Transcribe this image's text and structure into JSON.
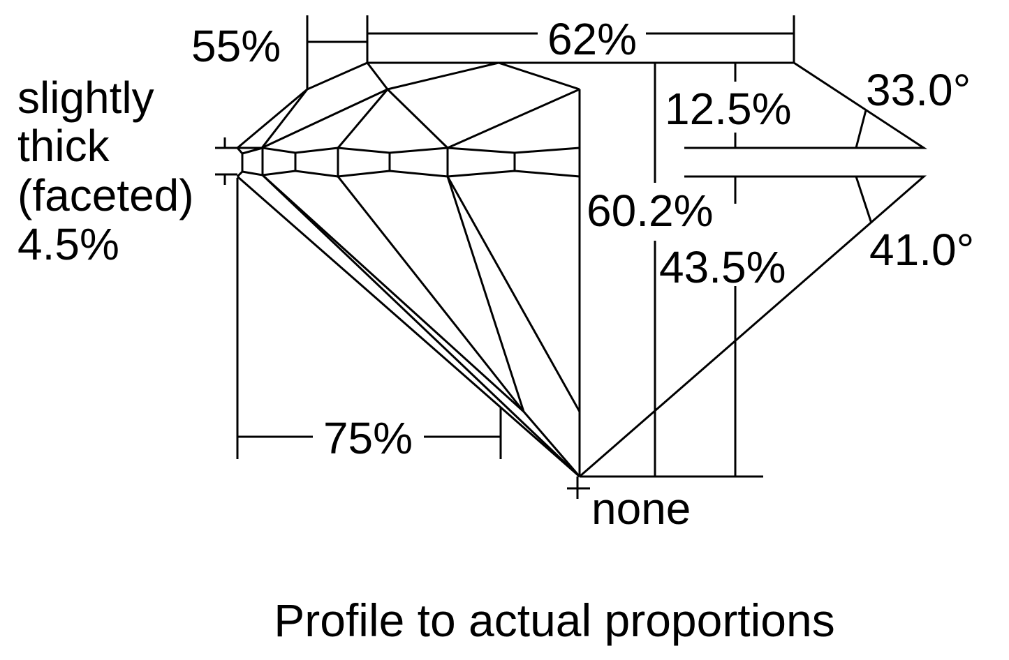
{
  "labels": {
    "crown_height_width": "55%",
    "table": "62%",
    "girdle_line1": "slightly",
    "girdle_line2": "thick",
    "girdle_line3": "(faceted)",
    "girdle_thickness": "4.5%",
    "crown_height": "12.5%",
    "crown_angle": "33.0°",
    "total_depth": "60.2%",
    "pavilion_depth": "43.5%",
    "pavilion_angle": "41.0°",
    "culet": "none",
    "lower_half": "75%"
  },
  "caption": "Profile to actual proportions",
  "colors": {
    "line": "#000000",
    "background": "#ffffff"
  }
}
